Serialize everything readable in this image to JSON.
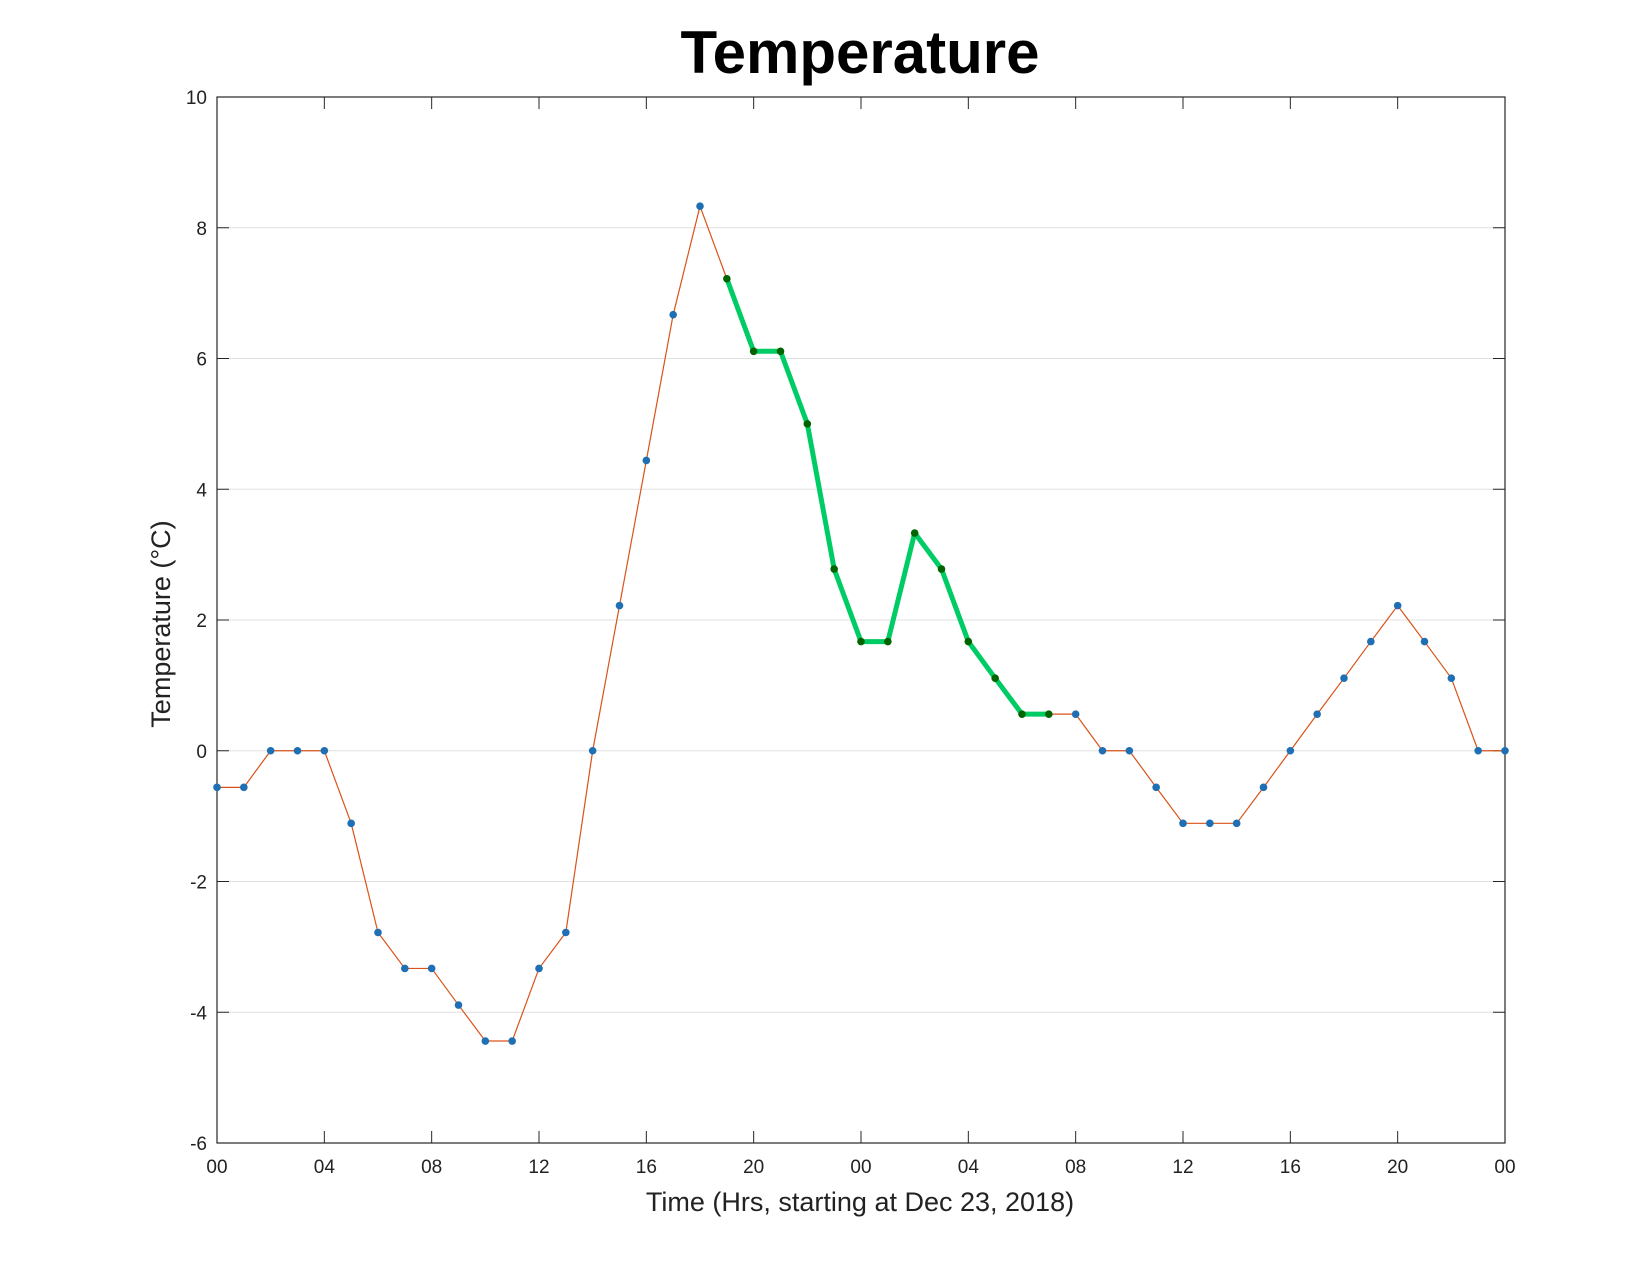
{
  "chart_data": {
    "type": "line",
    "title": "Temperature",
    "xlabel": "Time (Hrs, starting at Dec 23, 2018)",
    "ylabel": "Temperature (°C)",
    "xlim": [
      0,
      48
    ],
    "ylim": [
      -6,
      10
    ],
    "grid": "horizontal",
    "x_ticks": [
      0,
      4,
      8,
      12,
      16,
      20,
      24,
      28,
      32,
      36,
      40,
      44,
      48
    ],
    "x_tick_labels": [
      "00",
      "04",
      "08",
      "12",
      "16",
      "20",
      "00",
      "04",
      "08",
      "12",
      "16",
      "20",
      "00"
    ],
    "y_ticks": [
      -6,
      -4,
      -2,
      0,
      2,
      4,
      6,
      8,
      10
    ],
    "y_tick_labels": [
      "-6",
      "-4",
      "-2",
      "0",
      "2",
      "4",
      "6",
      "8",
      "10"
    ],
    "colors": {
      "line": "#d95319",
      "marker": "#1f6fb4",
      "highlight_line": "#00cc66",
      "highlight_marker": "#006400",
      "grid": "#e0e0e0",
      "axis": "#262626"
    },
    "series": [
      {
        "x": [
          0,
          1,
          2,
          3,
          4,
          5,
          6,
          7,
          8,
          9,
          10,
          11,
          12,
          13,
          14,
          15,
          16,
          17,
          18,
          19,
          20,
          21,
          22,
          23,
          24,
          25,
          26,
          27,
          28,
          29,
          30,
          31,
          32,
          33,
          34,
          35,
          36,
          37,
          38,
          39,
          40,
          41,
          42,
          43,
          44,
          45,
          46,
          47,
          48
        ],
        "values": [
          -0.56,
          -0.56,
          0,
          0,
          0,
          -1.11,
          -2.78,
          -3.33,
          -3.33,
          -3.89,
          -4.44,
          -4.44,
          -3.33,
          -2.78,
          0,
          2.22,
          4.44,
          6.67,
          8.33,
          7.22,
          6.11,
          6.11,
          5.0,
          2.78,
          1.67,
          1.67,
          3.33,
          2.78,
          1.67,
          1.11,
          0.56,
          0.56,
          0.56,
          0,
          0,
          -0.56,
          -1.11,
          -1.11,
          -1.11,
          -0.56,
          0,
          0.56,
          1.11,
          1.67,
          2.22,
          1.67,
          1.11,
          0,
          0
        ]
      }
    ],
    "highlight_range": [
      19,
      31
    ]
  }
}
